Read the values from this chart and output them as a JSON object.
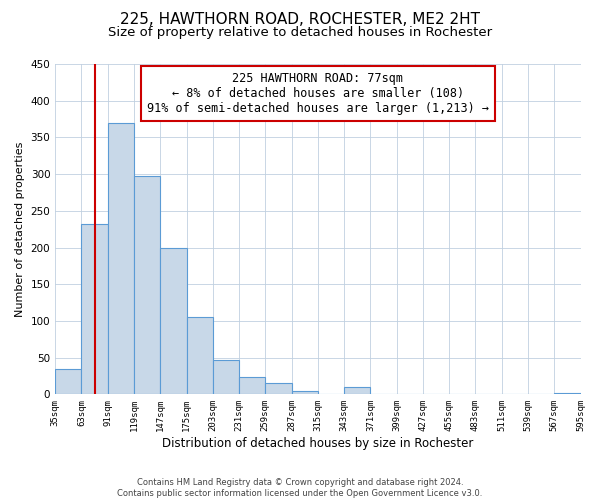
{
  "title": "225, HAWTHORN ROAD, ROCHESTER, ME2 2HT",
  "subtitle": "Size of property relative to detached houses in Rochester",
  "xlabel": "Distribution of detached houses by size in Rochester",
  "ylabel": "Number of detached properties",
  "bar_edges": [
    35,
    63,
    91,
    119,
    147,
    175,
    203,
    231,
    259,
    287,
    315,
    343,
    371,
    399,
    427,
    455,
    483,
    511,
    539,
    567,
    595
  ],
  "bar_heights": [
    35,
    232,
    370,
    297,
    199,
    105,
    47,
    23,
    16,
    4,
    0,
    10,
    1,
    0,
    0,
    0,
    0,
    0,
    0,
    2
  ],
  "bar_color": "#c8d8e8",
  "bar_edge_color": "#5b9bd5",
  "property_line_x": 77,
  "property_line_color": "#cc0000",
  "annotation_text": "225 HAWTHORN ROAD: 77sqm\n← 8% of detached houses are smaller (108)\n91% of semi-detached houses are larger (1,213) →",
  "annotation_box_color": "#ffffff",
  "annotation_box_edge": "#cc0000",
  "ylim": [
    0,
    450
  ],
  "yticks": [
    0,
    50,
    100,
    150,
    200,
    250,
    300,
    350,
    400,
    450
  ],
  "tick_labels": [
    "35sqm",
    "63sqm",
    "91sqm",
    "119sqm",
    "147sqm",
    "175sqm",
    "203sqm",
    "231sqm",
    "259sqm",
    "287sqm",
    "315sqm",
    "343sqm",
    "371sqm",
    "399sqm",
    "427sqm",
    "455sqm",
    "483sqm",
    "511sqm",
    "539sqm",
    "567sqm",
    "595sqm"
  ],
  "footnote": "Contains HM Land Registry data © Crown copyright and database right 2024.\nContains public sector information licensed under the Open Government Licence v3.0.",
  "bg_color": "#ffffff",
  "grid_color": "#c0d0e0",
  "title_fontsize": 11,
  "subtitle_fontsize": 9.5,
  "annotation_fontsize": 8.5,
  "ylabel_fontsize": 8,
  "xlabel_fontsize": 8.5,
  "tick_fontsize": 6.5,
  "ytick_fontsize": 7.5,
  "footnote_fontsize": 6
}
